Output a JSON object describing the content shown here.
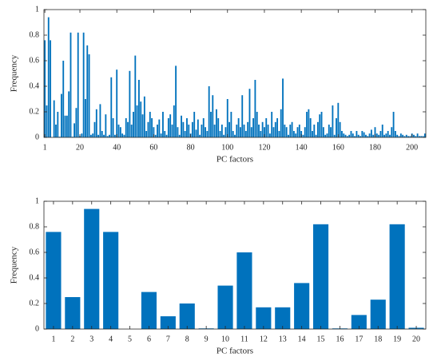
{
  "chart_data": [
    {
      "type": "bar",
      "xlabel": "PC factors",
      "ylabel": "Frequency",
      "color": "#0072bd",
      "x": [
        1,
        2,
        3,
        4,
        5,
        6,
        7,
        8,
        9,
        10,
        11,
        12,
        13,
        14,
        15,
        16,
        17,
        18,
        19,
        20,
        21,
        22,
        23,
        24,
        25,
        26,
        27,
        28,
        29,
        30,
        31,
        32,
        33,
        34,
        35,
        36,
        37,
        38,
        39,
        40,
        41,
        42,
        43,
        44,
        45,
        46,
        47,
        48,
        49,
        50,
        51,
        52,
        53,
        54,
        55,
        56,
        57,
        58,
        59,
        60,
        61,
        62,
        63,
        64,
        65,
        66,
        67,
        68,
        69,
        70,
        71,
        72,
        73,
        74,
        75,
        76,
        77,
        78,
        79,
        80,
        81,
        82,
        83,
        84,
        85,
        86,
        87,
        88,
        89,
        90,
        91,
        92,
        93,
        94,
        95,
        96,
        97,
        98,
        99,
        100,
        101,
        102,
        103,
        104,
        105,
        106,
        107,
        108,
        109,
        110,
        111,
        112,
        113,
        114,
        115,
        116,
        117,
        118,
        119,
        120,
        121,
        122,
        123,
        124,
        125,
        126,
        127,
        128,
        129,
        130,
        131,
        132,
        133,
        134,
        135,
        136,
        137,
        138,
        139,
        140,
        141,
        142,
        143,
        144,
        145,
        146,
        147,
        148,
        149,
        150,
        151,
        152,
        153,
        154,
        155,
        156,
        157,
        158,
        159,
        160,
        161,
        162,
        163,
        164,
        165,
        166,
        167,
        168,
        169,
        170,
        171,
        172,
        173,
        174,
        175,
        176,
        177,
        178,
        179,
        180,
        181,
        182,
        183,
        184,
        185,
        186,
        187,
        188,
        189,
        190,
        191,
        192,
        193,
        194,
        195,
        196,
        197,
        198,
        199,
        200,
        201,
        202,
        203,
        204,
        205,
        206,
        207
      ],
      "values": [
        0.76,
        0.25,
        0.94,
        0.76,
        0,
        0.29,
        0.1,
        0.2,
        0.005,
        0.34,
        0.6,
        0.17,
        0.17,
        0.36,
        0.82,
        0.005,
        0.11,
        0.23,
        0.82,
        0.01,
        0.03,
        0.82,
        0.3,
        0.72,
        0.65,
        0.02,
        0.03,
        0.12,
        0.22,
        0.02,
        0.26,
        0.05,
        0.02,
        0.18,
        0.01,
        0.02,
        0.47,
        0.15,
        0.02,
        0.53,
        0.1,
        0.08,
        0.03,
        0.02,
        0.15,
        0.12,
        0.52,
        0.1,
        0.2,
        0.64,
        0.25,
        0.45,
        0.28,
        0.18,
        0.32,
        0.05,
        0.12,
        0.2,
        0.15,
        0.08,
        0.02,
        0.1,
        0.14,
        0.03,
        0.2,
        0.05,
        0.02,
        0.15,
        0.18,
        0.1,
        0.25,
        0.56,
        0.08,
        0.02,
        0.17,
        0.12,
        0.05,
        0.15,
        0.1,
        0.03,
        0.12,
        0.2,
        0.06,
        0.14,
        0.02,
        0.1,
        0.15,
        0.08,
        0.05,
        0.4,
        0.2,
        0.33,
        0.1,
        0.22,
        0.15,
        0.05,
        0.1,
        0.02,
        0.08,
        0.3,
        0.12,
        0.2,
        0.05,
        0.02,
        0.1,
        0.15,
        0.08,
        0.33,
        0.1,
        0.05,
        0.12,
        0.38,
        0.08,
        0.15,
        0.45,
        0.2,
        0.1,
        0.05,
        0.12,
        0.08,
        0.15,
        0.1,
        0.03,
        0.2,
        0.08,
        0.12,
        0.15,
        0.05,
        0.22,
        0.46,
        0.1,
        0.08,
        0.02,
        0.1,
        0.12,
        0.05,
        0.03,
        0.08,
        0.1,
        0.05,
        0.02,
        0.08,
        0.2,
        0.22,
        0.15,
        0.05,
        0.1,
        0.02,
        0.12,
        0.18,
        0.2,
        0.08,
        0.02,
        0.03,
        0.1,
        0.08,
        0.25,
        0.02,
        0.15,
        0.27,
        0.12,
        0.05,
        0.03,
        0.02,
        0.01,
        0.02,
        0.05,
        0.03,
        0.01,
        0.05,
        0.02,
        0.01,
        0.05,
        0.04,
        0.02,
        0.01,
        0.03,
        0.06,
        0.02,
        0.08,
        0.03,
        0.02,
        0.05,
        0.1,
        0.02,
        0.03,
        0.05,
        0.02,
        0.08,
        0.2,
        0.05,
        0.02,
        0.01,
        0.03,
        0.02,
        0.01,
        0.02,
        0.01,
        0.01,
        0.03,
        0.02,
        0.01,
        0.03,
        0.01,
        0.01,
        0.01,
        0.03
      ],
      "xlim": [
        0.5,
        207.5
      ],
      "xticks": [
        1,
        20,
        40,
        60,
        80,
        100,
        120,
        140,
        160,
        180,
        200
      ],
      "ylim": [
        0,
        1
      ],
      "yticks": [
        0,
        0.2,
        0.4,
        0.6,
        0.8,
        1
      ]
    },
    {
      "type": "bar",
      "xlabel": "PC factors",
      "ylabel": "Frequency",
      "color": "#0072bd",
      "x": [
        1,
        2,
        3,
        4,
        5,
        6,
        7,
        8,
        9,
        10,
        11,
        12,
        13,
        14,
        15,
        16,
        17,
        18,
        19,
        20
      ],
      "values": [
        0.76,
        0.25,
        0.94,
        0.76,
        0,
        0.29,
        0.1,
        0.2,
        0.005,
        0.34,
        0.6,
        0.17,
        0.17,
        0.36,
        0.82,
        0.005,
        0.11,
        0.23,
        0.82,
        0.01
      ],
      "xlim": [
        0.5,
        20.5
      ],
      "xticks": [
        1,
        2,
        3,
        4,
        5,
        6,
        7,
        8,
        9,
        10,
        11,
        12,
        13,
        14,
        15,
        16,
        17,
        18,
        19,
        20
      ],
      "ylim": [
        0,
        1
      ],
      "yticks": [
        0,
        0.2,
        0.4,
        0.6,
        0.8,
        1
      ]
    }
  ]
}
